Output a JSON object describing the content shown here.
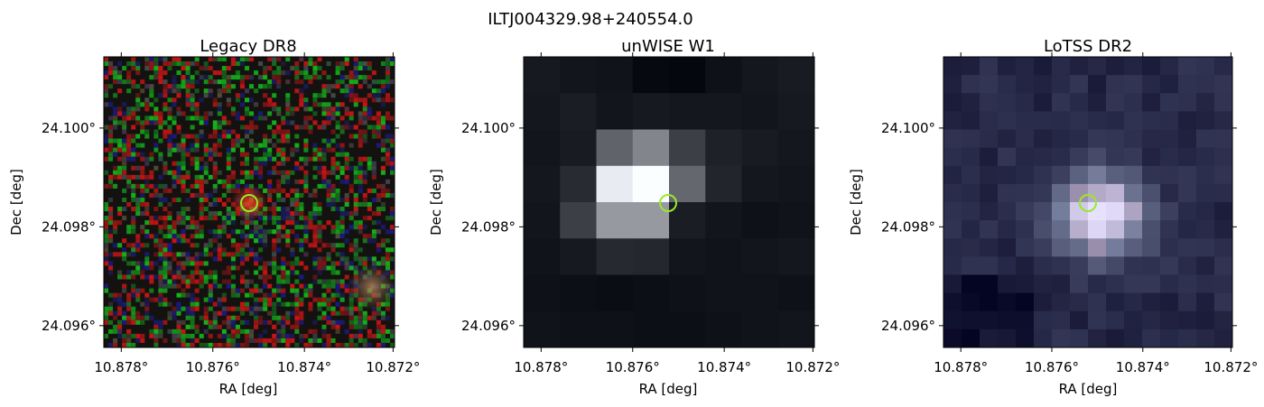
{
  "figure": {
    "title": "ILTJ004329.98+240554.0"
  },
  "panels": [
    {
      "id": "legacy",
      "title": "Legacy DR8",
      "xlabel": "RA [deg]",
      "ylabel": "Dec [deg]",
      "xticks": [
        "10.878°",
        "10.876°",
        "10.874°",
        "10.872°"
      ],
      "yticks": [
        "24.100°",
        "24.098°",
        "24.096°"
      ],
      "style": "rgb-noise"
    },
    {
      "id": "unwise",
      "title": "unWISE W1",
      "xlabel": "RA [deg]",
      "ylabel": "Dec [deg]",
      "xticks": [
        "10.878°",
        "10.876°",
        "10.874°",
        "10.872°"
      ],
      "yticks": [
        "24.100°",
        "24.098°",
        "24.096°"
      ],
      "style": "gray-blocks"
    },
    {
      "id": "lotss",
      "title": "LoTSS DR2",
      "xlabel": "RA [deg]",
      "ylabel": "Dec [deg]",
      "xticks": [
        "10.878°",
        "10.876°",
        "10.874°",
        "10.872°"
      ],
      "yticks": [
        "24.100°",
        "24.098°",
        "24.096°"
      ],
      "style": "bone-blocks"
    }
  ],
  "marker": {
    "color": "#9be82a",
    "shape": "circle"
  }
}
